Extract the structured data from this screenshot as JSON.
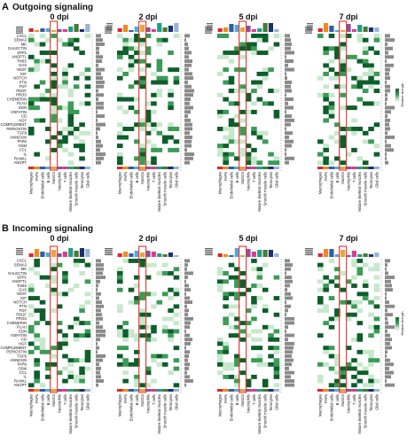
{
  "figure": {
    "panels": [
      {
        "letter": "A",
        "title": "Outgoing signaling",
        "legend_label": "Relative strength",
        "heatmaps": [
          {
            "label": "0 dpi",
            "pathways": [
              "CXCL",
              "SEMA3",
              "MK",
              "GALECTIN",
              "SPP1",
              "ANGPTL",
              "THBS",
              "GAS",
              "VEGF",
              "IGF",
              "NOTCH",
              "PTN",
              "FGF",
              "PDGF",
              "PROS",
              "CHEMERIN",
              "PLAU",
              "EDN",
              "VISFATIN",
              "CD",
              "HGF",
              "COMPLEMENT",
              "PERIOSTIN",
              "TGFb",
              "ANNEXIN",
              "PARs",
              "OSM",
              "CCL",
              "IL",
              "RANKL",
              "ANGPT"
            ]
          },
          {
            "label": "2 dpi",
            "pathways": []
          },
          {
            "label": "5 dpi",
            "pathways": []
          },
          {
            "label": "7 dpi",
            "pathways": []
          }
        ]
      },
      {
        "letter": "B",
        "title": "Incoming signaling",
        "legend_label": "Relative strength",
        "heatmaps": [
          {
            "label": "0 dpi",
            "pathways": [
              "CXCL",
              "SEMA3",
              "MK",
              "GALECTIN",
              "SPP1",
              "ANGPTL",
              "THBS",
              "GAS",
              "VEGF",
              "IGF",
              "NOTCH",
              "PTN",
              "FGF",
              "PDGF",
              "PROS",
              "CHEMERIN",
              "PLAU",
              "EDN",
              "VISFATIN",
              "CD",
              "HGF",
              "COMPLEMENT",
              "PERIOSTIN",
              "TGFb",
              "ANNEXIN",
              "PARs",
              "OSM",
              "CCL",
              "IL",
              "RANKL",
              "ANGPT"
            ]
          },
          {
            "label": "2 dpi",
            "pathways": []
          },
          {
            "label": "5 dpi",
            "pathways": []
          },
          {
            "label": "7 dpi",
            "pathways": []
          }
        ]
      }
    ],
    "cell_types": [
      "Macrophages",
      "FAPs",
      "Endothelial cells",
      "B cells",
      "MuSCs",
      "Neutrophils",
      "T cells",
      "Mature skeletal muscles",
      "Smooth muscle cells",
      "Tenocytes",
      "Glial cells"
    ],
    "highlight_cell_type": "MuSCs",
    "colors": {
      "heat_dark": "#0d5e2a",
      "heat_mid": "#3b9b57",
      "heat_light": "#c7e8cc",
      "highlight_box": "#e8322d",
      "side_bar": "#8a8a8a",
      "cell_type_colors": [
        "#e0262a",
        "#f08a1f",
        "#2d5fa8",
        "#5aa6d6",
        "#e9a33a",
        "#8c4fa0",
        "#d83f8a",
        "#1f9e89",
        "#4a7a33",
        "#1c2f6e",
        "#97b3d6"
      ]
    }
  }
}
